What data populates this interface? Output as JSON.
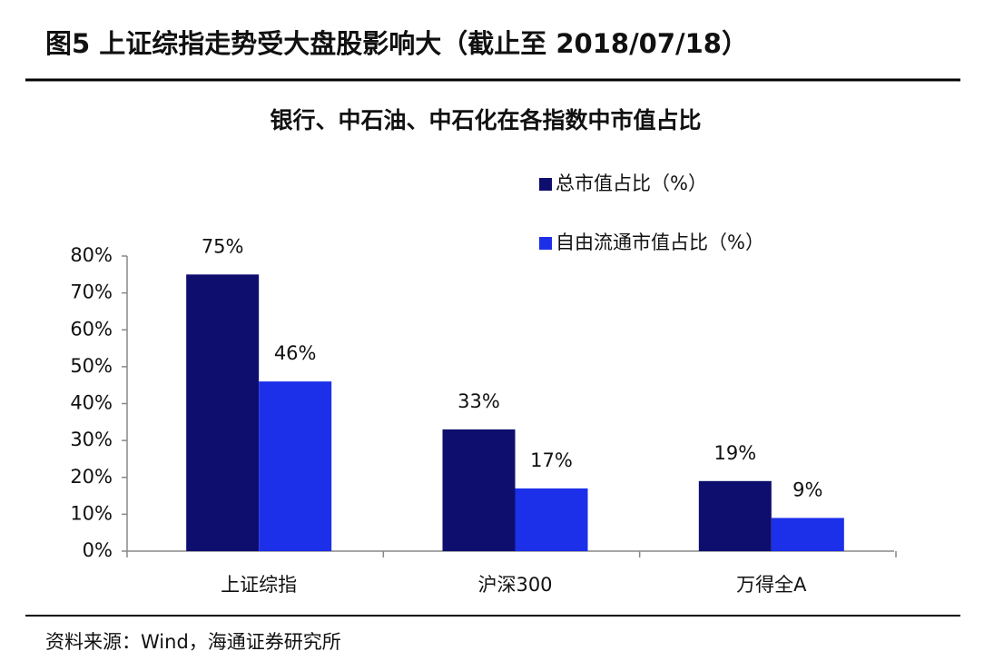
{
  "header": {
    "title": "图5 上证综指走势受大盘股影响大（截止至 2018/07/18）"
  },
  "chart_data": {
    "type": "bar",
    "title": "银行、中石油、中石化在各指数中市值占比",
    "categories": [
      "上证综指",
      "沪深300",
      "万得全A"
    ],
    "series": [
      {
        "name": "总市值占比（%）",
        "color": "#0e0e6e",
        "values": [
          75,
          33,
          19
        ],
        "value_labels": [
          "75%",
          "33%",
          "19%"
        ]
      },
      {
        "name": "自由流通市值占比（%）",
        "color": "#1c30ea",
        "values": [
          46,
          17,
          9
        ],
        "value_labels": [
          "46%",
          "17%",
          "9%"
        ]
      }
    ],
    "ylim": [
      0,
      80
    ],
    "yticks": [
      {
        "value": 0,
        "label": "0%"
      },
      {
        "value": 10,
        "label": "10%"
      },
      {
        "value": 20,
        "label": "20%"
      },
      {
        "value": 30,
        "label": "30%"
      },
      {
        "value": 40,
        "label": "40%"
      },
      {
        "value": 50,
        "label": "50%"
      },
      {
        "value": 60,
        "label": "60%"
      },
      {
        "value": 70,
        "label": "70%"
      },
      {
        "value": 80,
        "label": "80%"
      }
    ],
    "legend": "upper right"
  },
  "footer": {
    "source": "资料来源：Wind，海通证券研究所"
  }
}
